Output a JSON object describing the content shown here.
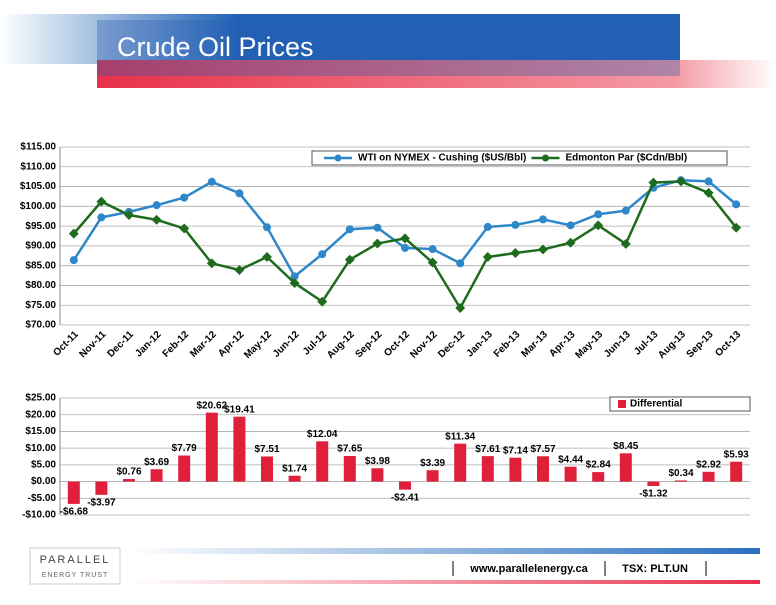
{
  "header": {
    "title": "Crude Oil Prices"
  },
  "chart_data": [
    {
      "type": "line",
      "categories": [
        "Oct-11",
        "Nov-11",
        "Dec-11",
        "Jan-12",
        "Feb-12",
        "Mar-12",
        "Apr-12",
        "May-12",
        "Jun-12",
        "Jul-12",
        "Aug-12",
        "Sep-12",
        "Oct-12",
        "Nov-12",
        "Dec-12",
        "Jan-13",
        "Feb-13",
        "Mar-13",
        "Apr-13",
        "May-13",
        "Jun-13",
        "Jul-13",
        "Aug-13",
        "Sep-13",
        "Oct-13"
      ],
      "series": [
        {
          "name": "WTI on NYMEX - Cushing ($US/Bbl)",
          "color": "#2e87c8",
          "values": [
            86.4,
            97.2,
            98.6,
            100.3,
            102.2,
            106.2,
            103.3,
            94.7,
            82.3,
            87.9,
            94.2,
            94.6,
            89.5,
            89.2,
            85.6,
            94.8,
            95.3,
            96.7,
            95.2,
            98.0,
            98.9,
            104.7,
            106.6,
            106.3,
            100.5
          ]
        },
        {
          "name": "Edmonton Par ($Cdn/Bbl)",
          "color": "#1e6b1e",
          "values": [
            93.1,
            101.2,
            97.8,
            96.6,
            94.4,
            85.6,
            83.9,
            87.2,
            80.6,
            75.9,
            86.5,
            90.6,
            91.9,
            85.8,
            74.3,
            87.2,
            88.2,
            89.1,
            90.8,
            95.2,
            90.5,
            106.0,
            106.3,
            103.4,
            94.6
          ]
        }
      ],
      "ylim": [
        70,
        115
      ],
      "yticks": [
        {
          "value": 70,
          "label": "$70.00"
        },
        {
          "value": 75,
          "label": "$75.00"
        },
        {
          "value": 80,
          "label": "$80.00"
        },
        {
          "value": 85,
          "label": "$85.00"
        },
        {
          "value": 90,
          "label": "$90.00"
        },
        {
          "value": 95,
          "label": "$95.00"
        },
        {
          "value": 100,
          "label": "$100.00"
        },
        {
          "value": 105,
          "label": "$105.00"
        },
        {
          "value": 110,
          "label": "$110.00"
        },
        {
          "value": 115,
          "label": "$115.00"
        }
      ],
      "grid": true,
      "legend": "top-right"
    },
    {
      "type": "bar",
      "series": [
        {
          "name": "Differential",
          "color": "#e0203a",
          "values": [
            -6.68,
            -3.97,
            0.76,
            3.69,
            7.79,
            20.62,
            19.41,
            7.51,
            1.74,
            12.04,
            7.65,
            3.98,
            -2.41,
            3.39,
            11.34,
            7.61,
            7.14,
            7.57,
            4.44,
            2.84,
            8.45,
            -1.32,
            0.34,
            2.92,
            5.93
          ],
          "value_labels": [
            "-$6.68",
            "-$3.97",
            "$0.76",
            "$3.69",
            "$7.79",
            "$20.62",
            "$19.41",
            "$7.51",
            "$1.74",
            "$12.04",
            "$7.65",
            "$3.98",
            "-$2.41",
            "$3.39",
            "$11.34",
            "$7.61",
            "$7.14",
            "$7.57",
            "$4.44",
            "$2.84",
            "$8.45",
            "-$1.32",
            "$0.34",
            "$2.92",
            "$5.93"
          ]
        }
      ],
      "ylim": [
        -10,
        25
      ],
      "yticks": [
        {
          "value": -10,
          "label": "-$10.00"
        },
        {
          "value": -5,
          "label": "-$5.00"
        },
        {
          "value": 0,
          "label": "$0.00"
        },
        {
          "value": 5,
          "label": "$5.00"
        },
        {
          "value": 10,
          "label": "$10.00"
        },
        {
          "value": 15,
          "label": "$15.00"
        },
        {
          "value": 20,
          "label": "$20.00"
        },
        {
          "value": 25,
          "label": "$25.00"
        }
      ],
      "grid": true,
      "legend": "top-right"
    }
  ],
  "footer": {
    "logo": "PARALLEL",
    "logo_sub": "ENERGY TRUST",
    "website": "www.parallelenergy.ca",
    "ticker": "TSX: PLT.UN"
  }
}
